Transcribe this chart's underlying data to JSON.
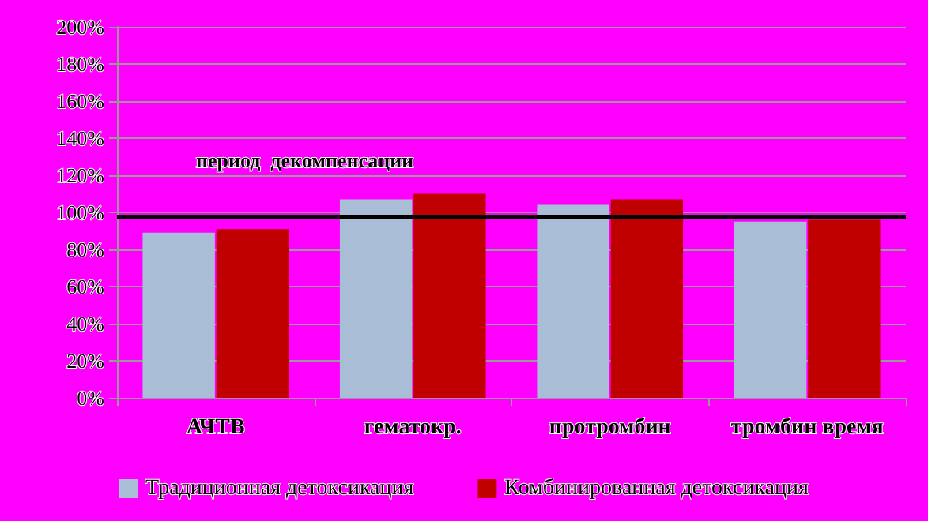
{
  "chart_data": {
    "type": "bar",
    "categories": [
      "АЧТВ",
      "гематокр.",
      "протромбин",
      "тромбин время"
    ],
    "series": [
      {
        "name": "Традиционная детоксикация",
        "color": "#a9bed6",
        "values": [
          89,
          107,
          104,
          95
        ]
      },
      {
        "name": "Комбинированная детоксикация",
        "color": "#c00000",
        "values": [
          91,
          110,
          107,
          96
        ]
      }
    ],
    "ylim": [
      0,
      200
    ],
    "yticks": [
      {
        "value": 0,
        "label": "0%"
      },
      {
        "value": 20,
        "label": "20%"
      },
      {
        "value": 40,
        "label": "40%"
      },
      {
        "value": 60,
        "label": "60%"
      },
      {
        "value": 80,
        "label": "80%"
      },
      {
        "value": 100,
        "label": "100%"
      },
      {
        "value": 120,
        "label": "120%"
      },
      {
        "value": 140,
        "label": "140%"
      },
      {
        "value": 160,
        "label": "160%"
      },
      {
        "value": 180,
        "label": "180%"
      },
      {
        "value": 200,
        "label": "200%"
      }
    ],
    "ref_lines": [
      {
        "axis": "y",
        "value": 98,
        "label": "период  декомпенсации",
        "color": "#000000"
      }
    ],
    "grid": "y",
    "legend": "bottom"
  }
}
